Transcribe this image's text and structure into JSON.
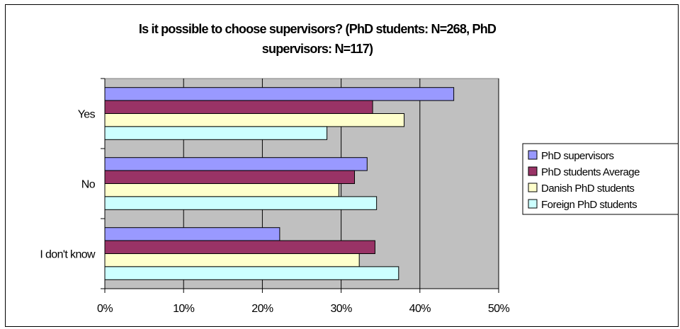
{
  "chart_data": {
    "type": "bar",
    "orientation": "horizontal",
    "title": "Is it possible to choose supervisors? (PhD students: N=268, PhD supervisors: N=117)",
    "title_lines": [
      "Is it possible to choose supervisors? (PhD students: N=268, PhD",
      "supervisors: N=117)"
    ],
    "categories": [
      "Yes",
      "No",
      "I don't know"
    ],
    "xlim": [
      0,
      50
    ],
    "xticks": [
      "0%",
      "10%",
      "20%",
      "30%",
      "40%",
      "50%"
    ],
    "grid": true,
    "legend_position": "right",
    "plot_background": "#c0c0c0",
    "series": [
      {
        "name": "PhD supervisors",
        "color": "#9999ff",
        "values": [
          44.3,
          33.3,
          22.2
        ]
      },
      {
        "name": "PhD students Average",
        "color": "#993366",
        "values": [
          34.0,
          31.7,
          34.3
        ]
      },
      {
        "name": "Danish PhD students",
        "color": "#ffffcc",
        "values": [
          38.0,
          29.7,
          32.3
        ]
      },
      {
        "name": "Foreign PhD students",
        "color": "#ccffff",
        "values": [
          28.2,
          34.5,
          37.3
        ]
      }
    ]
  }
}
